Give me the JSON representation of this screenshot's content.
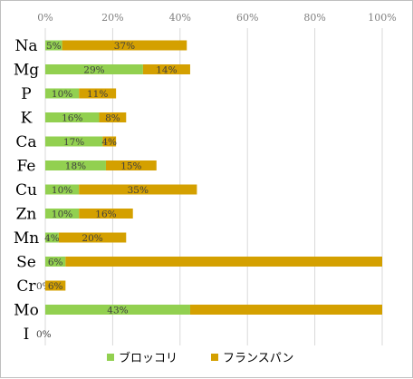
{
  "chart_data": {
    "type": "bar",
    "orientation": "horizontal",
    "stacked": true,
    "categories": [
      "Na",
      "Mg",
      "P",
      "K",
      "Ca",
      "Fe",
      "Cu",
      "Zn",
      "Mn",
      "Se",
      "Cr",
      "Mo",
      "I"
    ],
    "series": [
      {
        "name": "ブロッコリ",
        "color": "#92d050",
        "values": [
          5,
          29,
          10,
          16,
          17,
          18,
          10,
          10,
          4,
          6,
          0,
          43,
          0
        ],
        "labels": [
          "5%",
          "29%",
          "10%",
          "16%",
          "17%",
          "18%",
          "10%",
          "10%",
          "4%",
          "6%",
          "0%",
          "43%",
          "0%"
        ]
      },
      {
        "name": "フランスパン",
        "color": "#d4a000",
        "values": [
          37,
          14,
          11,
          8,
          4,
          15,
          35,
          16,
          20,
          94,
          6,
          57,
          0
        ],
        "labels": [
          "37%",
          "14%",
          "11%",
          "8%",
          "4%",
          "15%",
          "35%",
          "16%",
          "20%",
          "",
          "6%",
          "",
          ""
        ]
      }
    ],
    "xaxis": {
      "ticks": [
        0,
        20,
        40,
        60,
        80,
        100
      ],
      "tick_labels": [
        "0%",
        "20%",
        "40%",
        "60%",
        "80%",
        "100%"
      ],
      "range": [
        0,
        100
      ],
      "position": "top"
    },
    "grid": true,
    "legend": "bottom"
  }
}
